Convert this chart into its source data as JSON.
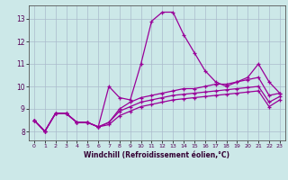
{
  "x": [
    0,
    1,
    2,
    3,
    4,
    5,
    6,
    7,
    8,
    9,
    10,
    11,
    12,
    13,
    14,
    15,
    16,
    17,
    18,
    19,
    20,
    21,
    22,
    23
  ],
  "line1": [
    8.5,
    8.0,
    8.8,
    8.8,
    8.4,
    8.4,
    8.2,
    10.0,
    9.5,
    9.4,
    11.0,
    12.9,
    13.3,
    13.3,
    12.3,
    11.5,
    10.7,
    10.2,
    10.0,
    10.2,
    10.4,
    11.0,
    10.2,
    9.7
  ],
  "line2": [
    8.5,
    8.0,
    8.8,
    8.8,
    8.4,
    8.4,
    8.2,
    8.4,
    9.0,
    9.3,
    9.5,
    9.6,
    9.7,
    9.8,
    9.9,
    9.9,
    10.0,
    10.1,
    10.1,
    10.2,
    10.3,
    10.4,
    9.6,
    9.7
  ],
  "line3": [
    8.5,
    8.0,
    8.8,
    8.8,
    8.4,
    8.4,
    8.2,
    8.4,
    8.9,
    9.1,
    9.3,
    9.4,
    9.5,
    9.6,
    9.65,
    9.7,
    9.75,
    9.8,
    9.85,
    9.9,
    9.95,
    10.0,
    9.3,
    9.55
  ],
  "line4": [
    8.5,
    8.0,
    8.8,
    8.8,
    8.4,
    8.4,
    8.2,
    8.3,
    8.7,
    8.9,
    9.1,
    9.2,
    9.3,
    9.4,
    9.45,
    9.5,
    9.55,
    9.6,
    9.65,
    9.7,
    9.75,
    9.8,
    9.1,
    9.4
  ],
  "color": "#990099",
  "bg_color": "#cce8e8",
  "grid_color": "#aabbcc",
  "xlabel": "Windchill (Refroidissement éolien,°C)",
  "ylim": [
    7.6,
    13.6
  ],
  "xlim": [
    -0.5,
    23.5
  ],
  "yticks": [
    8,
    9,
    10,
    11,
    12,
    13
  ],
  "xticks": [
    0,
    1,
    2,
    3,
    4,
    5,
    6,
    7,
    8,
    9,
    10,
    11,
    12,
    13,
    14,
    15,
    16,
    17,
    18,
    19,
    20,
    21,
    22,
    23
  ]
}
